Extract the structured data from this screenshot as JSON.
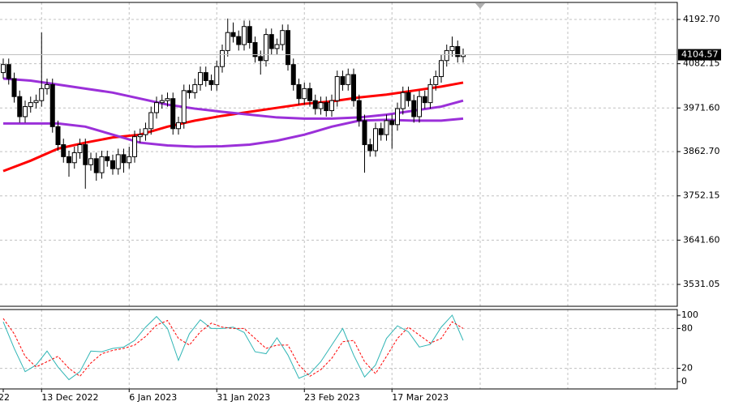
{
  "chart_data": {
    "type": "candlestick",
    "categories": [
      "22",
      null,
      null,
      null,
      null,
      null,
      null,
      "13 Dec 2022",
      null,
      null,
      null,
      null,
      null,
      null,
      null,
      null,
      null,
      null,
      null,
      null,
      null,
      null,
      null,
      "6 Jan 2023",
      null,
      null,
      null,
      null,
      null,
      null,
      null,
      null,
      null,
      null,
      null,
      null,
      null,
      null,
      null,
      "31 Jan 2023",
      null,
      null,
      null,
      null,
      null,
      null,
      null,
      null,
      null,
      null,
      null,
      null,
      null,
      null,
      null,
      "23 Feb 2023",
      null,
      null,
      null,
      null,
      null,
      null,
      null,
      null,
      null,
      null,
      null,
      null,
      null,
      null,
      null,
      "17 Mar 2023",
      null,
      null,
      null,
      null,
      null,
      null,
      null,
      null,
      null,
      null,
      null,
      null,
      null
    ],
    "open": [
      4060,
      4080,
      4045,
      4000,
      3950,
      3975,
      3985,
      3990,
      4020,
      4030,
      3925,
      3880,
      3850,
      3835,
      3860,
      3880,
      3830,
      3845,
      3810,
      3850,
      3840,
      3820,
      3855,
      3835,
      3850,
      3900,
      3905,
      3920,
      3960,
      3985,
      3990,
      3995,
      3920,
      3935,
      4015,
      4010,
      4030,
      4060,
      4040,
      4030,
      4075,
      4115,
      4160,
      4150,
      4130,
      4175,
      4135,
      4100,
      4090,
      4155,
      4120,
      4130,
      4165,
      4080,
      4030,
      3995,
      4020,
      3990,
      3970,
      3985,
      3965,
      3990,
      4050,
      4030,
      4055,
      3990,
      3940,
      3880,
      3865,
      3920,
      3905,
      3940,
      3930,
      3970,
      4010,
      3990,
      3950,
      4000,
      3985,
      4030,
      4050,
      4090,
      4115,
      4125,
      4100
    ],
    "high": [
      4095,
      4095,
      4060,
      4015,
      3990,
      4000,
      4005,
      4160,
      4045,
      4045,
      3940,
      3895,
      3865,
      3875,
      3895,
      3895,
      3860,
      3860,
      3865,
      3865,
      3855,
      3870,
      3870,
      3875,
      3915,
      3920,
      3935,
      3975,
      4000,
      4005,
      4010,
      4010,
      3950,
      4030,
      4030,
      4045,
      4075,
      4075,
      4055,
      4090,
      4130,
      4195,
      4185,
      4165,
      4190,
      4190,
      4150,
      4115,
      4170,
      4170,
      4145,
      4180,
      4180,
      4095,
      4045,
      4035,
      4035,
      4005,
      4000,
      4000,
      4005,
      4065,
      4065,
      4070,
      4070,
      4005,
      3955,
      3895,
      3935,
      3935,
      3955,
      3955,
      3985,
      4025,
      4025,
      4005,
      4015,
      4015,
      4045,
      4065,
      4105,
      4130,
      4150,
      4140,
      4120
    ],
    "low": [
      4045,
      4030,
      3985,
      3935,
      3935,
      3960,
      3970,
      3975,
      4005,
      3910,
      3865,
      3835,
      3800,
      3820,
      3845,
      3770,
      3815,
      3790,
      3795,
      3825,
      3805,
      3805,
      3810,
      3820,
      3835,
      3885,
      3890,
      3905,
      3945,
      3970,
      3975,
      3905,
      3905,
      3920,
      3995,
      3995,
      4015,
      4025,
      4015,
      4015,
      4060,
      4100,
      4135,
      4115,
      4115,
      4120,
      4085,
      4055,
      4075,
      4105,
      4105,
      4115,
      4065,
      4015,
      3980,
      3980,
      3975,
      3955,
      3955,
      3950,
      3950,
      3975,
      4015,
      4015,
      3975,
      3925,
      3810,
      3850,
      3850,
      3890,
      3890,
      3870,
      3915,
      3955,
      3975,
      3935,
      3935,
      3970,
      3970,
      4015,
      4035,
      4075,
      4100,
      4085,
      4085
    ],
    "close": [
      4080,
      4045,
      4000,
      3950,
      3975,
      3985,
      3990,
      4020,
      4030,
      3925,
      3880,
      3850,
      3835,
      3860,
      3880,
      3830,
      3845,
      3810,
      3850,
      3840,
      3820,
      3855,
      3835,
      3850,
      3900,
      3905,
      3920,
      3960,
      3985,
      3990,
      3995,
      3920,
      3935,
      4015,
      4010,
      4030,
      4060,
      4040,
      4030,
      4075,
      4115,
      4160,
      4150,
      4130,
      4175,
      4135,
      4100,
      4090,
      4155,
      4120,
      4130,
      4165,
      4080,
      4030,
      3995,
      4020,
      3990,
      3970,
      3985,
      3965,
      3990,
      4050,
      4030,
      4055,
      3990,
      3940,
      3880,
      3865,
      3920,
      3905,
      3940,
      3930,
      3970,
      4010,
      3990,
      3950,
      4000,
      3985,
      4030,
      4050,
      4090,
      4115,
      4125,
      4100,
      4104.57
    ],
    "last_price": 4104.57,
    "ylim": [
      3476.4,
      4235.2
    ],
    "yticks": [
      {
        "value": 4192.7,
        "label": "4192.70"
      },
      4082.15,
      {
        "value": 3971.6,
        "label": "3971.60"
      },
      {
        "value": 3862.7,
        "label": "3862.70"
      },
      3752.15,
      {
        "value": 3641.6,
        "label": "3641.60"
      },
      3531.05
    ],
    "grid": true,
    "overlays": [
      {
        "color": "#ff0000",
        "x": [
          0,
          5,
          10,
          15,
          20,
          25,
          30,
          35,
          40,
          45,
          50,
          55,
          60,
          65,
          70,
          75,
          80,
          84
        ],
        "values": [
          3814,
          3840,
          3870,
          3885,
          3898,
          3905,
          3925,
          3940,
          3952,
          3962,
          3972,
          3982,
          3988,
          3998,
          4005,
          4015,
          4025,
          4035
        ]
      },
      {
        "color": "#9b30d9",
        "x": [
          0,
          5,
          10,
          15,
          20,
          25,
          30,
          35,
          40,
          45,
          50,
          55,
          60,
          65,
          70,
          75,
          80,
          84
        ],
        "values": [
          4045,
          4040,
          4030,
          4020,
          4010,
          3995,
          3980,
          3970,
          3962,
          3955,
          3948,
          3945,
          3945,
          3948,
          3955,
          3965,
          3975,
          3990
        ]
      },
      {
        "color": "#9b30d9",
        "x": [
          0,
          5,
          10,
          15,
          20,
          25,
          30,
          35,
          40,
          45,
          50,
          55,
          60,
          65,
          70,
          75,
          80,
          84
        ],
        "values": [
          3933,
          3933,
          3933,
          3925,
          3905,
          3885,
          3878,
          3875,
          3876,
          3880,
          3890,
          3905,
          3925,
          3940,
          3942,
          3940,
          3940,
          3945
        ]
      }
    ],
    "oscillator": {
      "ylim": [
        -11,
        108.5
      ],
      "yticks": [
        100,
        80,
        20,
        0
      ],
      "series": [
        {
          "color": "#2fb5b5",
          "dashed": false,
          "x": [
            0,
            2,
            4,
            6,
            8,
            10,
            12,
            14,
            16,
            18,
            20,
            22,
            24,
            26,
            28,
            30,
            32,
            34,
            36,
            38,
            40,
            42,
            44,
            46,
            48,
            50,
            52,
            54,
            56,
            58,
            60,
            62,
            64,
            66,
            68,
            70,
            72,
            74,
            76,
            78,
            80,
            82,
            84
          ],
          "values": [
            90,
            50,
            15,
            25,
            46,
            22,
            3,
            15,
            46,
            45,
            50,
            52,
            62,
            82,
            98,
            80,
            32,
            72,
            93,
            80,
            80,
            82,
            74,
            45,
            42,
            66,
            40,
            5,
            12,
            30,
            55,
            80,
            40,
            7,
            25,
            65,
            84,
            75,
            52,
            56,
            82,
            100,
            62
          ]
        },
        {
          "color": "#ff0000",
          "dashed": true,
          "x": [
            0,
            2,
            4,
            6,
            8,
            10,
            12,
            14,
            16,
            18,
            20,
            22,
            24,
            26,
            28,
            30,
            32,
            34,
            36,
            38,
            40,
            42,
            44,
            46,
            48,
            50,
            52,
            54,
            56,
            58,
            60,
            62,
            64,
            66,
            68,
            70,
            72,
            74,
            76,
            78,
            80,
            82,
            84
          ],
          "values": [
            95,
            72,
            38,
            22,
            30,
            38,
            20,
            8,
            28,
            42,
            47,
            50,
            55,
            68,
            85,
            92,
            65,
            55,
            75,
            88,
            82,
            80,
            80,
            65,
            50,
            55,
            55,
            25,
            8,
            18,
            35,
            60,
            62,
            30,
            12,
            38,
            65,
            82,
            70,
            58,
            65,
            90,
            80
          ]
        }
      ]
    }
  }
}
